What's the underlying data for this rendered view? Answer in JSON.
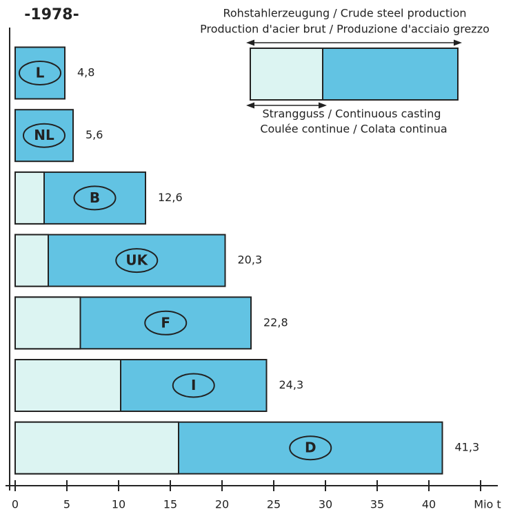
{
  "chart_data": {
    "type": "bar",
    "orientation": "horizontal",
    "title": "-1978-",
    "categories": [
      "L",
      "NL",
      "B",
      "UK",
      "F",
      "I",
      "D"
    ],
    "series": [
      {
        "name": "Rohstahlerzeugung / Crude steel production",
        "name_2": "Production d'acier brut / Produzione d'acciaio grezzo",
        "color": "#62c3e3",
        "values": [
          4.8,
          5.6,
          12.6,
          20.3,
          22.8,
          24.3,
          41.3
        ],
        "value_labels": [
          "4,8",
          "5,6",
          "12,6",
          "20,3",
          "22,8",
          "24,3",
          "41,3"
        ]
      },
      {
        "name": "Strangguss / Continuous casting",
        "name_2": "Coulée continue / Colata continua",
        "color": "#dcf4f2",
        "values": [
          0,
          0,
          2.8,
          3.2,
          6.3,
          10.2,
          15.8
        ]
      }
    ],
    "xlim": [
      0,
      46.5
    ],
    "xticks": [
      0,
      5,
      10,
      15,
      20,
      25,
      30,
      35,
      40,
      {
        "value": 45,
        "label": "Mio t"
      }
    ]
  }
}
